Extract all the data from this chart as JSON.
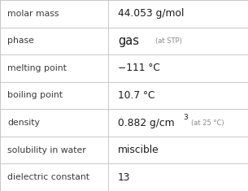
{
  "rows": [
    {
      "label": "molar mass",
      "value_main": "44.053 g/mol",
      "type": "plain"
    },
    {
      "label": "phase",
      "value_main": "gas",
      "type": "phase"
    },
    {
      "label": "melting point",
      "value_main": "−111 °C",
      "type": "plain"
    },
    {
      "label": "boiling point",
      "value_main": "10.7 °C",
      "type": "plain"
    },
    {
      "label": "density",
      "value_main": "0.882 g/cm",
      "type": "density"
    },
    {
      "label": "solubility in water",
      "value_main": "miscible",
      "type": "plain"
    },
    {
      "label": "dielectric constant",
      "value_main": "13",
      "type": "plain"
    }
  ],
  "col_split": 0.435,
  "bg_color": "#ffffff",
  "label_color": "#3a3a3a",
  "value_color": "#1a1a1a",
  "line_color": "#c8c8c8",
  "small_color": "#888888",
  "label_fontsize": 7.8,
  "value_fontsize": 8.8,
  "phase_fontsize": 10.5,
  "small_fontsize": 6.0,
  "super_fontsize": 6.5
}
